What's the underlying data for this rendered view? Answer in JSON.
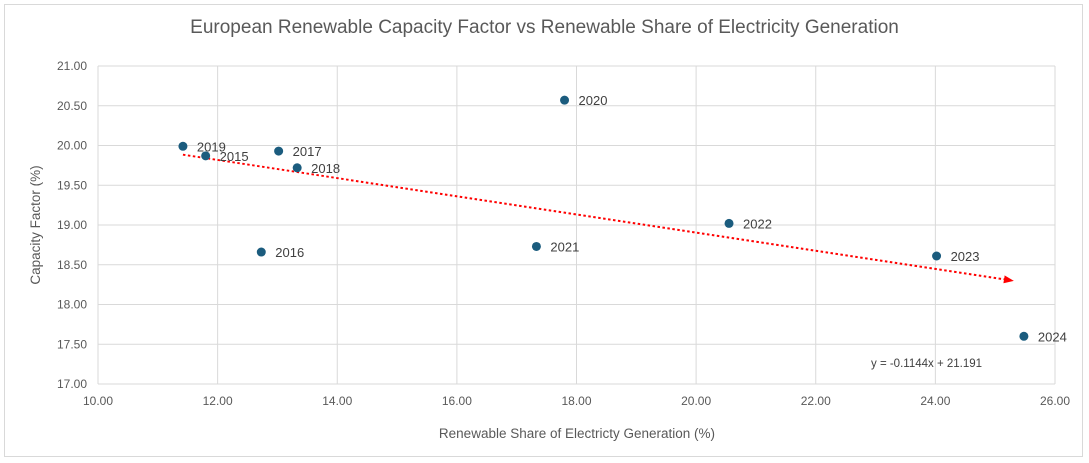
{
  "chart_data": {
    "type": "scatter",
    "title": "European Renewable Capacity Factor vs Renewable Share of Electricity Generation",
    "xlabel": "Renewable Share of Electricty Generation (%)",
    "ylabel": "Capacity Factor (%)",
    "xlim": [
      10.0,
      26.0
    ],
    "ylim": [
      17.0,
      21.0
    ],
    "x_ticks": [
      "10.00",
      "12.00",
      "14.00",
      "16.00",
      "18.00",
      "20.00",
      "22.00",
      "24.00",
      "26.00"
    ],
    "y_ticks": [
      "17.00",
      "17.50",
      "18.00",
      "18.50",
      "19.00",
      "19.50",
      "20.00",
      "20.50",
      "21.00"
    ],
    "grid": true,
    "legend": "none",
    "points": [
      {
        "label": "2015",
        "x": 11.8,
        "y": 19.87
      },
      {
        "label": "2016",
        "x": 12.73,
        "y": 18.66
      },
      {
        "label": "2017",
        "x": 13.02,
        "y": 19.93
      },
      {
        "label": "2018",
        "x": 13.33,
        "y": 19.72
      },
      {
        "label": "2019",
        "x": 11.42,
        "y": 19.99
      },
      {
        "label": "2020",
        "x": 17.8,
        "y": 20.57
      },
      {
        "label": "2021",
        "x": 17.33,
        "y": 18.73
      },
      {
        "label": "2022",
        "x": 20.55,
        "y": 19.02
      },
      {
        "label": "2023",
        "x": 24.02,
        "y": 18.61
      },
      {
        "label": "2024",
        "x": 25.48,
        "y": 17.6
      }
    ],
    "trendline": {
      "slope": -0.1144,
      "intercept": 21.191,
      "x_range": [
        11.42,
        25.48
      ],
      "equation": "y = -0.1144x + 21.191"
    },
    "colors": {
      "points": "#1b5c7e",
      "trendline": "#ff0000",
      "grid": "#d9d9d9",
      "text": "#595959"
    }
  }
}
